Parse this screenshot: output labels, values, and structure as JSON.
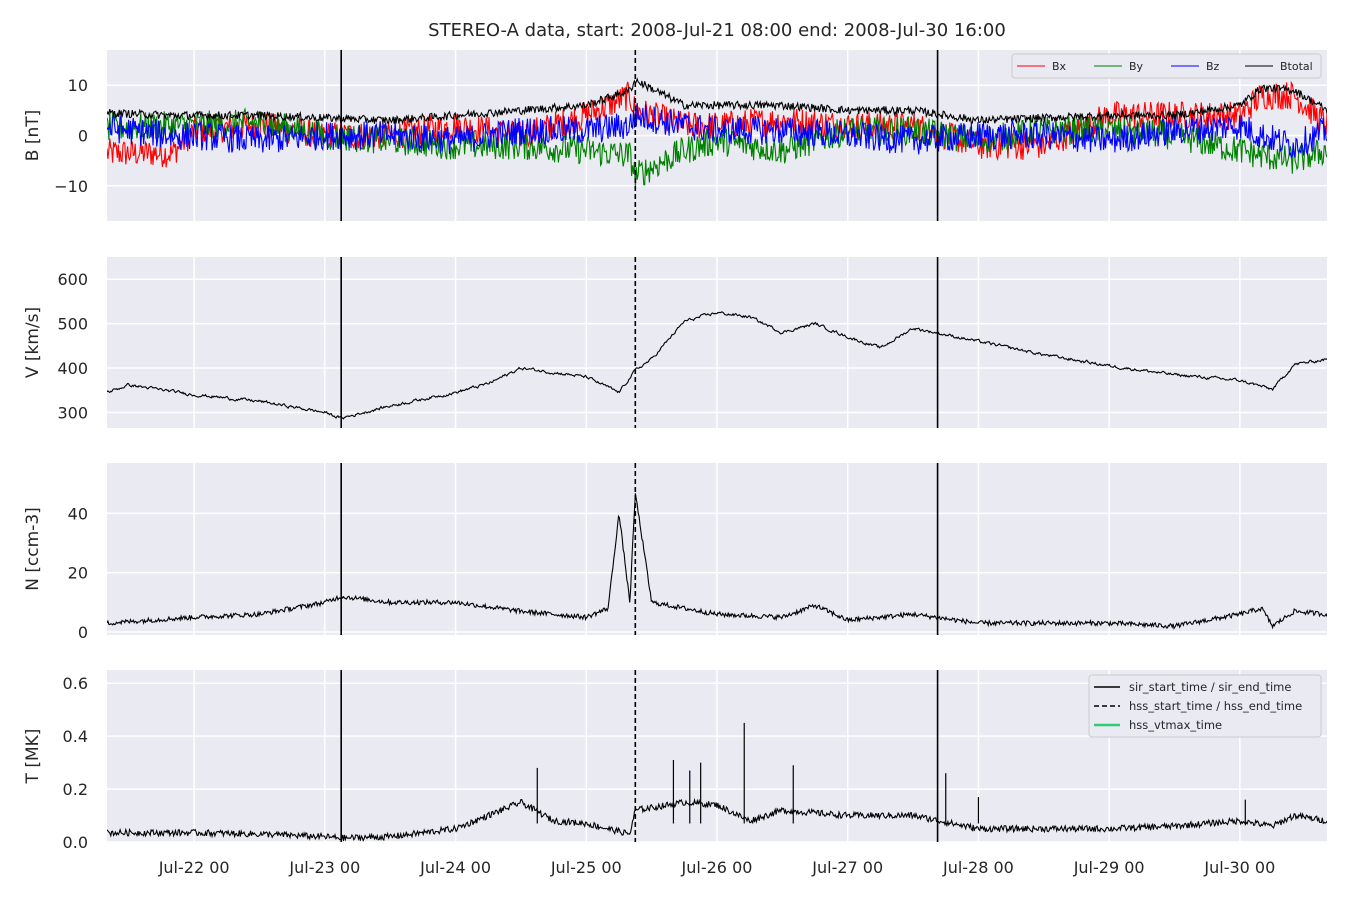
{
  "colors": {
    "panel_bg": "#eaeaf2",
    "grid": "#ffffff",
    "bx": "#ff0000",
    "by": "#008000",
    "bz": "#0000ff",
    "btotal": "#000000",
    "hss_vtmax": "#2ecc71",
    "markers": "#000000"
  },
  "chart_data": {
    "type": "line",
    "title": "STEREO-A data, start: 2008-Jul-21 08:00  end: 2008-Jul-30 16:00",
    "x_range": [
      "2008-07-21 08:00",
      "2008-07-30 16:00"
    ],
    "x_ticks": [
      "Jul-22 00",
      "Jul-23 00",
      "Jul-24 00",
      "Jul-25 00",
      "Jul-26 00",
      "Jul-27 00",
      "Jul-28 00",
      "Jul-29 00",
      "Jul-30 00"
    ],
    "grid": true,
    "markers": {
      "sir_start_time": "2008-07-23 03:00",
      "hss_start_time": "2008-07-25 09:00",
      "sir_end_time": "2008-07-27 16:30",
      "legend_labels": [
        "sir_start_time / sir_end_time",
        "hss_start_time / hss_end_time",
        "hss_vtmax_time"
      ]
    },
    "panels": [
      {
        "ylabel": "B [nT]",
        "ylim": [
          -17,
          17
        ],
        "yticks": [
          -10,
          0,
          10
        ],
        "legend": "top-right",
        "series": [
          {
            "name": "Bx",
            "color": "#ff0000",
            "points": [
              [
                "2008-07-21 08:00",
                -3.5
              ],
              [
                "2008-07-21 20:00",
                -3.5
              ],
              [
                "2008-07-22 00:00",
                1
              ],
              [
                "2008-07-22 12:00",
                2
              ],
              [
                "2008-07-23 00:00",
                0
              ],
              [
                "2008-07-23 12:00",
                0
              ],
              [
                "2008-07-24 00:00",
                2
              ],
              [
                "2008-07-24 12:00",
                0
              ],
              [
                "2008-07-25 00:00",
                4
              ],
              [
                "2008-07-25 08:00",
                8
              ],
              [
                "2008-07-25 09:00",
                5
              ],
              [
                "2008-07-25 18:00",
                2
              ],
              [
                "2008-07-26 00:00",
                2
              ],
              [
                "2008-07-26 12:00",
                3
              ],
              [
                "2008-07-27 00:00",
                2
              ],
              [
                "2008-07-27 12:00",
                2
              ],
              [
                "2008-07-28 00:00",
                -2
              ],
              [
                "2008-07-28 12:00",
                -2
              ],
              [
                "2008-07-29 00:00",
                4
              ],
              [
                "2008-07-29 12:00",
                4
              ],
              [
                "2008-07-30 00:00",
                4
              ],
              [
                "2008-07-30 04:00",
                8
              ],
              [
                "2008-07-30 10:00",
                8
              ],
              [
                "2008-07-30 16:00",
                2
              ]
            ]
          },
          {
            "name": "By",
            "color": "#008000",
            "points": [
              [
                "2008-07-21 08:00",
                1.5
              ],
              [
                "2008-07-21 20:00",
                2
              ],
              [
                "2008-07-22 00:00",
                2
              ],
              [
                "2008-07-22 12:00",
                2.5
              ],
              [
                "2008-07-23 00:00",
                0
              ],
              [
                "2008-07-23 12:00",
                -1
              ],
              [
                "2008-07-24 00:00",
                -2
              ],
              [
                "2008-07-24 12:00",
                -2
              ],
              [
                "2008-07-25 00:00",
                -3
              ],
              [
                "2008-07-25 08:00",
                -4
              ],
              [
                "2008-07-25 09:00",
                -8
              ],
              [
                "2008-07-25 18:00",
                -3
              ],
              [
                "2008-07-26 00:00",
                -1
              ],
              [
                "2008-07-26 12:00",
                -3
              ],
              [
                "2008-07-27 00:00",
                1
              ],
              [
                "2008-07-27 12:00",
                1
              ],
              [
                "2008-07-28 00:00",
                -1
              ],
              [
                "2008-07-28 12:00",
                1
              ],
              [
                "2008-07-29 00:00",
                1
              ],
              [
                "2008-07-29 12:00",
                0
              ],
              [
                "2008-07-30 00:00",
                -3
              ],
              [
                "2008-07-30 04:00",
                -4
              ],
              [
                "2008-07-30 10:00",
                -5
              ],
              [
                "2008-07-30 16:00",
                -3
              ]
            ]
          },
          {
            "name": "Bz",
            "color": "#0000ff",
            "points": [
              [
                "2008-07-21 08:00",
                1.5
              ],
              [
                "2008-07-21 20:00",
                0
              ],
              [
                "2008-07-22 00:00",
                0
              ],
              [
                "2008-07-22 12:00",
                -1
              ],
              [
                "2008-07-23 00:00",
                0
              ],
              [
                "2008-07-23 12:00",
                0
              ],
              [
                "2008-07-24 00:00",
                -1
              ],
              [
                "2008-07-24 12:00",
                1
              ],
              [
                "2008-07-25 00:00",
                1
              ],
              [
                "2008-07-25 08:00",
                2
              ],
              [
                "2008-07-25 09:00",
                4
              ],
              [
                "2008-07-25 18:00",
                2
              ],
              [
                "2008-07-26 00:00",
                1
              ],
              [
                "2008-07-26 12:00",
                1
              ],
              [
                "2008-07-27 00:00",
                0
              ],
              [
                "2008-07-27 12:00",
                -1
              ],
              [
                "2008-07-28 00:00",
                0
              ],
              [
                "2008-07-28 12:00",
                0
              ],
              [
                "2008-07-29 00:00",
                -1
              ],
              [
                "2008-07-29 12:00",
                1
              ],
              [
                "2008-07-30 00:00",
                2
              ],
              [
                "2008-07-30 04:00",
                0
              ],
              [
                "2008-07-30 10:00",
                -2
              ],
              [
                "2008-07-30 16:00",
                1
              ]
            ]
          },
          {
            "name": "Btotal",
            "color": "#000000",
            "points": [
              [
                "2008-07-21 08:00",
                4.5
              ],
              [
                "2008-07-21 20:00",
                4
              ],
              [
                "2008-07-22 00:00",
                4
              ],
              [
                "2008-07-22 12:00",
                4
              ],
              [
                "2008-07-23 00:00",
                3.5
              ],
              [
                "2008-07-23 12:00",
                3
              ],
              [
                "2008-07-24 00:00",
                4
              ],
              [
                "2008-07-24 12:00",
                5
              ],
              [
                "2008-07-25 00:00",
                6
              ],
              [
                "2008-07-25 08:00",
                9
              ],
              [
                "2008-07-25 09:00",
                11
              ],
              [
                "2008-07-25 18:00",
                6
              ],
              [
                "2008-07-26 00:00",
                6
              ],
              [
                "2008-07-26 12:00",
                6
              ],
              [
                "2008-07-27 00:00",
                5
              ],
              [
                "2008-07-27 12:00",
                5
              ],
              [
                "2008-07-28 00:00",
                3
              ],
              [
                "2008-07-28 12:00",
                3.5
              ],
              [
                "2008-07-29 00:00",
                4
              ],
              [
                "2008-07-29 12:00",
                4
              ],
              [
                "2008-07-30 00:00",
                6
              ],
              [
                "2008-07-30 04:00",
                9.5
              ],
              [
                "2008-07-30 10:00",
                9
              ],
              [
                "2008-07-30 16:00",
                5
              ]
            ]
          }
        ]
      },
      {
        "ylabel": "V [km/s]",
        "ylim": [
          265,
          650
        ],
        "yticks": [
          300,
          400,
          500,
          600
        ],
        "series": [
          {
            "color": "#000000",
            "points": [
              [
                "2008-07-21 08:00",
                345
              ],
              [
                "2008-07-21 12:00",
                362
              ],
              [
                "2008-07-22 00:00",
                340
              ],
              [
                "2008-07-22 12:00",
                325
              ],
              [
                "2008-07-23 00:00",
                300
              ],
              [
                "2008-07-23 03:00",
                287
              ],
              [
                "2008-07-23 12:00",
                315
              ],
              [
                "2008-07-24 00:00",
                345
              ],
              [
                "2008-07-24 06:00",
                365
              ],
              [
                "2008-07-24 12:00",
                400
              ],
              [
                "2008-07-25 00:00",
                380
              ],
              [
                "2008-07-25 06:00",
                345
              ],
              [
                "2008-07-25 09:00",
                395
              ],
              [
                "2008-07-25 12:00",
                420
              ],
              [
                "2008-07-25 18:00",
                505
              ],
              [
                "2008-07-26 00:00",
                525
              ],
              [
                "2008-07-26 06:00",
                515
              ],
              [
                "2008-07-26 12:00",
                480
              ],
              [
                "2008-07-26 18:00",
                500
              ],
              [
                "2008-07-27 00:00",
                470
              ],
              [
                "2008-07-27 06:00",
                445
              ],
              [
                "2008-07-27 12:00",
                490
              ],
              [
                "2008-07-27 18:00",
                475
              ],
              [
                "2008-07-28 00:00",
                460
              ],
              [
                "2008-07-28 12:00",
                430
              ],
              [
                "2008-07-29 00:00",
                405
              ],
              [
                "2008-07-29 12:00",
                385
              ],
              [
                "2008-07-30 00:00",
                372
              ],
              [
                "2008-07-30 06:00",
                352
              ],
              [
                "2008-07-30 10:00",
                408
              ],
              [
                "2008-07-30 16:00",
                420
              ]
            ]
          }
        ]
      },
      {
        "ylabel": "N [ccm-3]",
        "ylim": [
          -1,
          57
        ],
        "yticks": [
          0,
          20,
          40
        ],
        "series": [
          {
            "color": "#000000",
            "points": [
              [
                "2008-07-21 08:00",
                3
              ],
              [
                "2008-07-22 00:00",
                5
              ],
              [
                "2008-07-22 12:00",
                6
              ],
              [
                "2008-07-23 00:00",
                10
              ],
              [
                "2008-07-23 03:00",
                12
              ],
              [
                "2008-07-23 12:00",
                10
              ],
              [
                "2008-07-24 00:00",
                10
              ],
              [
                "2008-07-24 12:00",
                7
              ],
              [
                "2008-07-25 00:00",
                5
              ],
              [
                "2008-07-25 04:00",
                8
              ],
              [
                "2008-07-25 06:00",
                40
              ],
              [
                "2008-07-25 08:00",
                10
              ],
              [
                "2008-07-25 09:00",
                47
              ],
              [
                "2008-07-25 12:00",
                10
              ],
              [
                "2008-07-26 00:00",
                6
              ],
              [
                "2008-07-26 12:00",
                5
              ],
              [
                "2008-07-26 18:00",
                9
              ],
              [
                "2008-07-27 00:00",
                4
              ],
              [
                "2008-07-27 12:00",
                6
              ],
              [
                "2008-07-28 00:00",
                3
              ],
              [
                "2008-07-28 12:00",
                3
              ],
              [
                "2008-07-29 00:00",
                3
              ],
              [
                "2008-07-29 12:00",
                2
              ],
              [
                "2008-07-30 00:00",
                6
              ],
              [
                "2008-07-30 04:00",
                8
              ],
              [
                "2008-07-30 06:00",
                2
              ],
              [
                "2008-07-30 10:00",
                7
              ],
              [
                "2008-07-30 16:00",
                6
              ]
            ]
          }
        ]
      },
      {
        "ylabel": "T [MK]",
        "ylim": [
          0,
          0.65
        ],
        "yticks": [
          0.0,
          0.2,
          0.4,
          0.6
        ],
        "legend": "top-right",
        "series": [
          {
            "color": "#000000",
            "points": [
              [
                "2008-07-21 08:00",
                0.035
              ],
              [
                "2008-07-22 00:00",
                0.035
              ],
              [
                "2008-07-22 12:00",
                0.03
              ],
              [
                "2008-07-23 00:00",
                0.02
              ],
              [
                "2008-07-23 03:00",
                0.015
              ],
              [
                "2008-07-23 12:00",
                0.02
              ],
              [
                "2008-07-24 00:00",
                0.05
              ],
              [
                "2008-07-24 06:00",
                0.1
              ],
              [
                "2008-07-24 12:00",
                0.15
              ],
              [
                "2008-07-24 18:00",
                0.08
              ],
              [
                "2008-07-25 00:00",
                0.07
              ],
              [
                "2008-07-25 08:00",
                0.03
              ],
              [
                "2008-07-25 09:00",
                0.12
              ],
              [
                "2008-07-25 18:00",
                0.15
              ],
              [
                "2008-07-26 00:00",
                0.14
              ],
              [
                "2008-07-26 06:00",
                0.08
              ],
              [
                "2008-07-26 12:00",
                0.12
              ],
              [
                "2008-07-27 00:00",
                0.1
              ],
              [
                "2008-07-27 12:00",
                0.1
              ],
              [
                "2008-07-28 00:00",
                0.05
              ],
              [
                "2008-07-28 12:00",
                0.05
              ],
              [
                "2008-07-29 00:00",
                0.05
              ],
              [
                "2008-07-29 12:00",
                0.06
              ],
              [
                "2008-07-30 00:00",
                0.08
              ],
              [
                "2008-07-30 06:00",
                0.06
              ],
              [
                "2008-07-30 10:00",
                0.1
              ],
              [
                "2008-07-30 16:00",
                0.08
              ]
            ]
          }
        ],
        "spikes": [
          [
            "2008-07-24 15:00",
            0.28
          ],
          [
            "2008-07-25 16:00",
            0.31
          ],
          [
            "2008-07-25 19:00",
            0.27
          ],
          [
            "2008-07-25 21:00",
            0.3
          ],
          [
            "2008-07-26 05:00",
            0.45
          ],
          [
            "2008-07-26 14:00",
            0.29
          ],
          [
            "2008-07-27 18:00",
            0.26
          ],
          [
            "2008-07-28 00:00",
            0.17
          ],
          [
            "2008-07-30 01:00",
            0.16
          ]
        ]
      }
    ]
  }
}
